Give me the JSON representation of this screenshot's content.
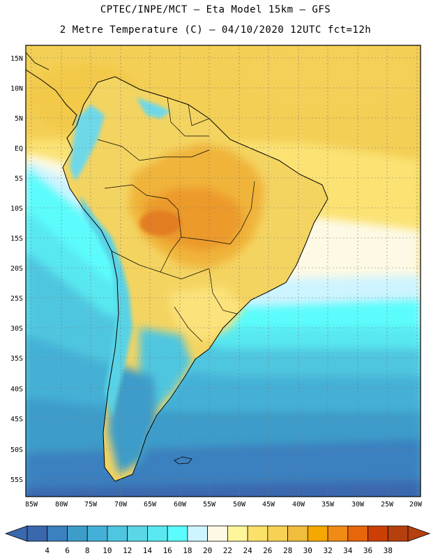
{
  "header": {
    "title_line1": "CPTEC/INPE/MCT  –   Eta Model 15km  – GFS",
    "title_line2": "2 Metre Temperature (C) – 04/10/2020 12UTC fct=12h"
  },
  "axes": {
    "lat_labels": [
      "15N",
      "10N",
      "5N",
      "EQ",
      "5S",
      "10S",
      "15S",
      "20S",
      "25S",
      "30S",
      "35S",
      "40S",
      "45S",
      "50S",
      "55S"
    ],
    "lon_labels": [
      "85W",
      "80W",
      "75W",
      "70W",
      "65W",
      "60W",
      "55W",
      "50W",
      "45W",
      "40W",
      "35W",
      "30W",
      "25W",
      "20W"
    ]
  },
  "colorbar": {
    "labels": [
      "4",
      "6",
      "8",
      "10",
      "12",
      "14",
      "16",
      "18",
      "20",
      "22",
      "24",
      "26",
      "28",
      "30",
      "32",
      "34",
      "36",
      "38"
    ],
    "colors": [
      "#3a68ad",
      "#3b80bf",
      "#3e9cc9",
      "#44b0d6",
      "#4fc6df",
      "#5bd6e6",
      "#59e8f0",
      "#5cfcfc",
      "#cdf4ff",
      "#fdf9e4",
      "#fff59b",
      "#fbe16a",
      "#f6d154",
      "#f0bd3c",
      "#f5a800",
      "#f08b16",
      "#e5660b",
      "#cc3f04",
      "#b5400e"
    ],
    "under_color": "#3a68ad",
    "over_color": "#b5400e"
  },
  "regions": [
    {
      "name": "atlantic-north",
      "color": "#f5d058"
    },
    {
      "name": "atlantic-mid-bands",
      "color": "#5cfcfc"
    },
    {
      "name": "pacific-cold-band",
      "color": "#4fc6df"
    },
    {
      "name": "southern-ocean",
      "color": "#3a68ad"
    },
    {
      "name": "amazon-core",
      "color": "#f0a22a"
    },
    {
      "name": "andes-cold",
      "color": "#6ed8e8"
    }
  ]
}
